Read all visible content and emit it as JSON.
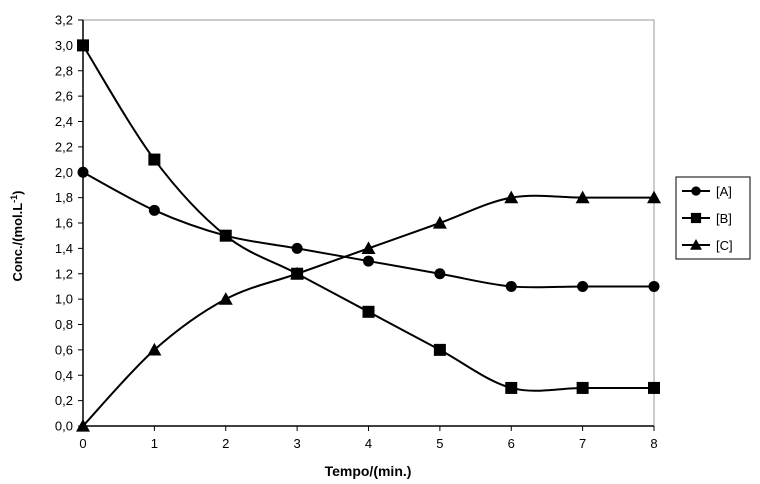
{
  "chart_data": {
    "type": "line",
    "title": "",
    "xlabel": "Tempo/(min.)",
    "ylabel": "Conc./(mol.L",
    "ylabel_superscript": "-1",
    "ylabel_suffix": ")",
    "x": [
      0,
      1,
      2,
      3,
      4,
      5,
      6,
      7,
      8
    ],
    "xlim": [
      0,
      8
    ],
    "ylim": [
      0,
      3.2
    ],
    "x_ticks": [
      "0",
      "1",
      "2",
      "3",
      "4",
      "5",
      "6",
      "7",
      "8"
    ],
    "y_ticks": [
      "0,0",
      "0,2",
      "0,4",
      "0,6",
      "0,8",
      "1,0",
      "1,2",
      "1,4",
      "1,6",
      "1,8",
      "2,0",
      "2,2",
      "2,4",
      "2,6",
      "2,8",
      "3,0",
      "3,2"
    ],
    "grid": false,
    "legend_position": "right",
    "series": [
      {
        "name": "[A]",
        "marker": "circle",
        "values": [
          2.0,
          1.7,
          1.5,
          1.4,
          1.3,
          1.2,
          1.1,
          1.1,
          1.1
        ]
      },
      {
        "name": "[B]",
        "marker": "square",
        "values": [
          3.0,
          2.1,
          1.5,
          1.2,
          0.9,
          0.6,
          0.3,
          0.3,
          0.3
        ]
      },
      {
        "name": "[C]",
        "marker": "triangle",
        "values": [
          0.0,
          0.6,
          1.0,
          1.2,
          1.4,
          1.6,
          1.8,
          1.8,
          1.8
        ]
      }
    ],
    "colors": {
      "line": "#000000",
      "marker": "#000000",
      "axis": "#000000"
    }
  }
}
